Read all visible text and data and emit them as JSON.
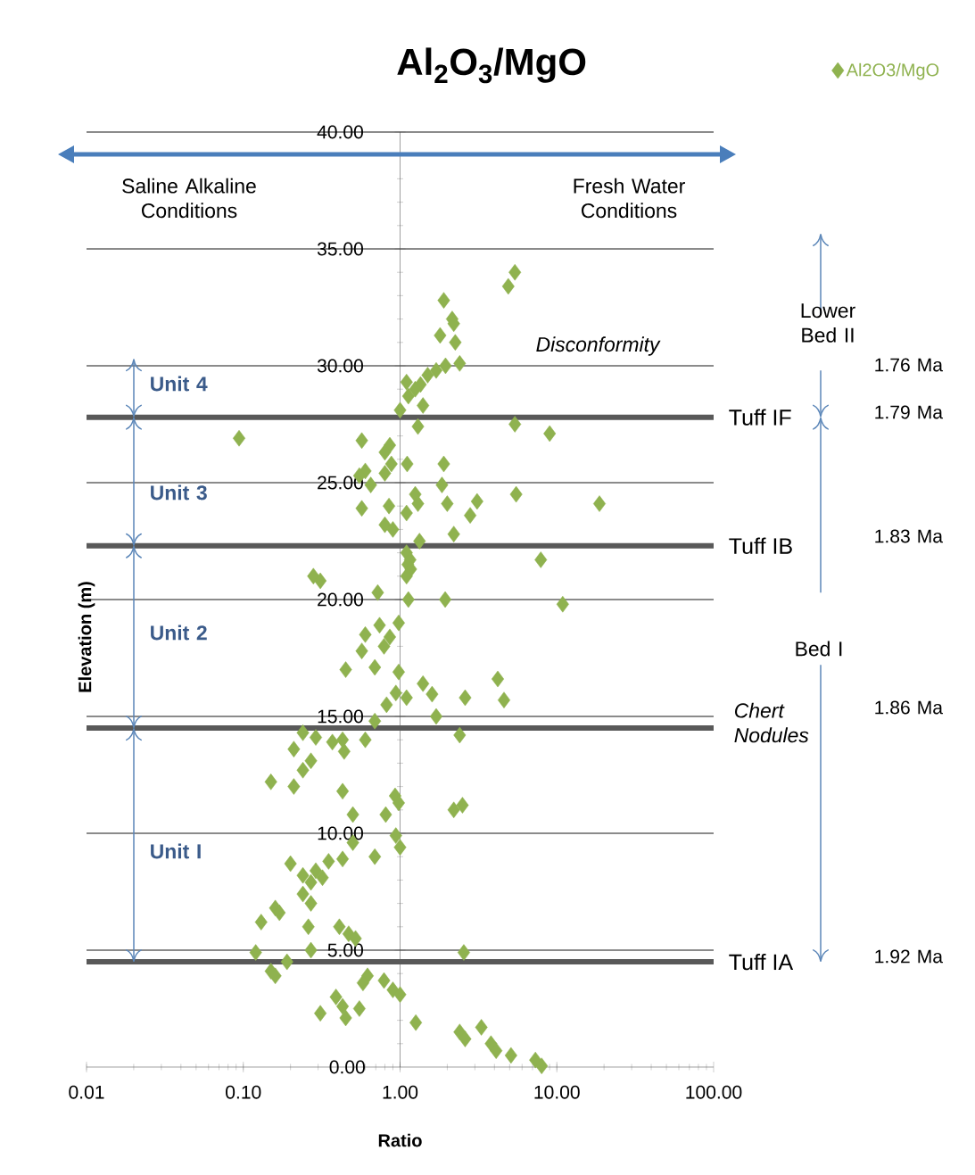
{
  "chart_data": {
    "type": "scatter",
    "title": "Al$_{2}$O$_{3}$/MgO",
    "xlabel": "Ratio",
    "ylabel": "Elevation  (m)",
    "log": "x",
    "grid": "y",
    "legend": "top right",
    "marker": "diamond",
    "xlim": [
      0.01,
      100
    ],
    "ylim": [
      0,
      40
    ],
    "xticks": [
      {
        "value": 0.01,
        "label": "0.01"
      },
      {
        "value": 0.1,
        "label": "0.10"
      },
      {
        "value": 1,
        "label": "1.00"
      },
      {
        "value": 10,
        "label": "10.00"
      },
      {
        "value": 100,
        "label": "100.00"
      }
    ],
    "yticks": [
      {
        "value": 0,
        "label": "0.00"
      },
      {
        "value": 5,
        "label": "5.00"
      },
      {
        "value": 10,
        "label": "10.00"
      },
      {
        "value": 15,
        "label": "15.00"
      },
      {
        "value": 20,
        "label": "20.00"
      },
      {
        "value": 25,
        "label": "25.00"
      },
      {
        "value": 30,
        "label": "30.00"
      },
      {
        "value": 35,
        "label": "35.00"
      },
      {
        "value": 40,
        "label": "40.00"
      }
    ],
    "x": [
      5.4,
      4.9,
      1.9,
      2.15,
      2.2,
      1.8,
      2.25,
      2.4,
      1.95,
      1.7,
      1.5,
      1.35,
      1.25,
      1.13,
      1.1,
      1.4,
      1.0,
      1.3,
      5.4,
      9.0,
      0.094,
      0.57,
      0.86,
      0.8,
      0.88,
      0.8,
      1.9,
      0.6,
      0.55,
      0.65,
      1.11,
      1.85,
      1.25,
      1.3,
      5.5,
      18.7,
      2.0,
      3.1,
      2.8,
      0.85,
      1.1,
      0.57,
      0.8,
      0.9,
      2.2,
      1.33,
      7.9,
      1.1,
      1.12,
      1.16,
      1.17,
      1.1,
      0.28,
      0.31,
      0.72,
      1.13,
      1.94,
      10.9,
      0.98,
      0.74,
      0.6,
      0.86,
      0.79,
      0.57,
      0.45,
      0.69,
      0.98,
      4.2,
      4.6,
      2.6,
      1.4,
      1.6,
      0.94,
      1.1,
      0.82,
      1.7,
      0.69,
      2.4,
      0.6,
      0.24,
      0.29,
      0.43,
      0.37,
      0.44,
      0.21,
      0.27,
      0.24,
      0.15,
      0.21,
      0.43,
      0.93,
      0.81,
      0.98,
      0.5,
      2.2,
      2.5,
      0.94,
      1.0,
      0.5,
      0.69,
      0.43,
      0.2,
      0.35,
      0.29,
      0.24,
      0.32,
      0.27,
      0.24,
      0.27,
      0.16,
      0.17,
      0.13,
      0.26,
      0.41,
      0.47,
      0.52,
      0.12,
      0.27,
      2.55,
      0.19,
      0.15,
      0.16,
      0.62,
      0.58,
      0.79,
      0.9,
      1.0,
      0.39,
      0.43,
      0.31,
      0.55,
      0.45,
      1.26,
      2.4,
      2.6,
      3.3,
      3.8,
      4.1,
      5.1,
      7.3,
      8.0
    ],
    "series": [
      {
        "name": "Al2O3/MgO",
        "color": "#8fb24f",
        "values": [
          34.0,
          33.4,
          32.8,
          32.0,
          31.8,
          31.3,
          31.0,
          30.1,
          30.0,
          29.8,
          29.6,
          29.2,
          29.0,
          28.7,
          29.3,
          28.3,
          28.1,
          27.4,
          27.5,
          27.1,
          26.9,
          26.8,
          26.6,
          26.3,
          25.8,
          25.4,
          25.8,
          25.5,
          25.3,
          24.9,
          25.8,
          24.9,
          24.5,
          24.1,
          24.5,
          24.1,
          24.1,
          24.2,
          23.6,
          24.0,
          23.7,
          23.9,
          23.2,
          23.0,
          22.8,
          22.5,
          21.7,
          22.0,
          21.5,
          21.7,
          21.3,
          21.0,
          21.0,
          20.8,
          20.3,
          20.0,
          20.0,
          19.8,
          19.0,
          18.9,
          18.5,
          18.4,
          18.0,
          17.8,
          17.0,
          17.1,
          16.9,
          16.6,
          15.7,
          15.8,
          16.4,
          15.95,
          16.0,
          15.8,
          15.5,
          15.0,
          14.8,
          14.2,
          14.0,
          14.3,
          14.1,
          14.0,
          13.9,
          13.5,
          13.6,
          13.1,
          12.7,
          12.2,
          12.0,
          11.8,
          11.6,
          10.8,
          11.3,
          10.8,
          11.0,
          11.2,
          9.9,
          9.4,
          9.6,
          9.0,
          8.9,
          8.7,
          8.8,
          8.4,
          8.2,
          8.1,
          7.9,
          7.4,
          7.0,
          6.8,
          6.6,
          6.2,
          6.0,
          6.0,
          5.7,
          5.5,
          4.9,
          5.0,
          4.9,
          4.5,
          4.1,
          3.9,
          3.9,
          3.6,
          3.7,
          3.3,
          3.1,
          3.0,
          2.6,
          2.3,
          2.5,
          2.1,
          1.9,
          1.5,
          1.2,
          1.7,
          1.0,
          0.7,
          0.5,
          0.3,
          0.05
        ]
      }
    ],
    "ref_lines": [
      {
        "axis": "y",
        "value": 4.5,
        "label": "Tuff IA",
        "color": "#595959"
      },
      {
        "axis": "y",
        "value": 14.5,
        "color": "#595959"
      },
      {
        "axis": "y",
        "value": 22.3,
        "label": "Tuff IB",
        "color": "#595959"
      },
      {
        "axis": "y",
        "value": 27.8,
        "label": "Tuff IF",
        "color": "#595959"
      }
    ],
    "annotations": [
      "Saline Alkaline Conditions",
      "Fresh Water Conditions",
      "Disconformity",
      "Chert Nodules",
      "Lower Bed II",
      "Bed I",
      "Unit 4",
      "Unit 3",
      "Unit 2",
      "Unit I",
      "1.76 Ma",
      "1.79 Ma",
      "1.83 Ma",
      "1.86 Ma",
      "1.92 Ma"
    ]
  }
}
